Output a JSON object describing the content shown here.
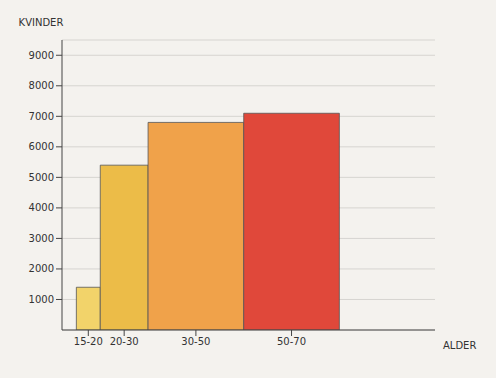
{
  "chart_data": {
    "type": "histogram",
    "xlabel": "ALDER",
    "ylabel": "KVINDER",
    "bins": [
      15,
      20,
      30,
      50,
      70
    ],
    "values": [
      1400,
      5400,
      6800,
      7100
    ],
    "colors": [
      "#f2d36a",
      "#ecbc48",
      "#f0a24a",
      "#e0483a"
    ],
    "xlim": [
      12,
      90
    ],
    "ylim": [
      0,
      9500
    ],
    "xticks": [
      {
        "value": 17.5,
        "label": "15-20"
      },
      {
        "value": 25,
        "label": "20-30"
      },
      {
        "value": 40,
        "label": "30-50"
      },
      {
        "value": 60,
        "label": "50-70"
      }
    ],
    "yticks": [
      1000,
      2000,
      3000,
      4000,
      5000,
      6000,
      7000,
      8000,
      9000
    ],
    "grid": true
  }
}
